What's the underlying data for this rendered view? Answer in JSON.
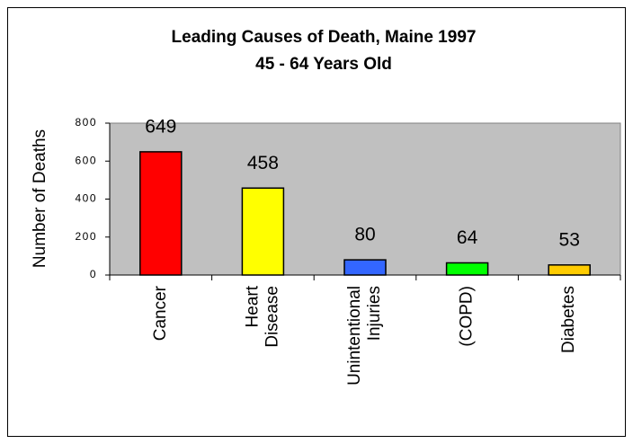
{
  "chart_data": {
    "type": "bar",
    "title": "Leading Causes of Death, Maine 1997",
    "subtitle": "45 - 64 Years Old",
    "y_label": "Number of Deaths",
    "categories": [
      "Cancer",
      "Heart Disease",
      "Unintentional Injuries",
      "(COPD)",
      "Diabetes"
    ],
    "values": [
      649,
      458,
      80,
      64,
      53
    ],
    "colors": [
      "#ff0000",
      "#ffff00",
      "#3366ff",
      "#00ff00",
      "#ffcc00"
    ],
    "ylim": [
      0,
      800
    ],
    "yticks": [
      0,
      200,
      400,
      600,
      800
    ],
    "grid": false
  }
}
